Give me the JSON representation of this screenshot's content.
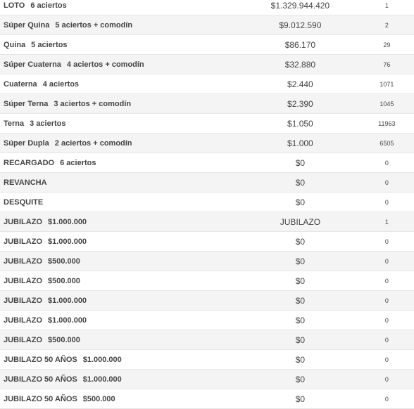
{
  "table": {
    "rows": [
      {
        "name": "LOTO",
        "detail": "6 aciertos",
        "prize": "$1.329.944.420",
        "winners": "1"
      },
      {
        "name": "Súper Quina",
        "detail": "5 aciertos + comodín",
        "prize": "$9.012.590",
        "winners": "2"
      },
      {
        "name": "Quina",
        "detail": "5 aciertos",
        "prize": "$86.170",
        "winners": "29"
      },
      {
        "name": "Súper Cuaterna",
        "detail": "4 aciertos + comodín",
        "prize": "$32.880",
        "winners": "76"
      },
      {
        "name": "Cuaterna",
        "detail": "4 aciertos",
        "prize": "$2.440",
        "winners": "1071"
      },
      {
        "name": "Súper Terna",
        "detail": "3 aciertos + comodín",
        "prize": "$2.390",
        "winners": "1045"
      },
      {
        "name": "Terna",
        "detail": "3 aciertos",
        "prize": "$1.050",
        "winners": "11963"
      },
      {
        "name": "Súper Dupla",
        "detail": "2 aciertos + comodín",
        "prize": "$1.000",
        "winners": "6505"
      },
      {
        "name": "RECARGADO",
        "detail": "6 aciertos",
        "prize": "$0",
        "winners": "0"
      },
      {
        "name": "REVANCHA",
        "detail": null,
        "prize": "$0",
        "winners": "0"
      },
      {
        "name": "DESQUITE",
        "detail": null,
        "prize": "$0",
        "winners": "0"
      },
      {
        "name": "JUBILAZO",
        "detail": "$1.000.000",
        "prize": "JUBILAZO",
        "winners": "1"
      },
      {
        "name": "JUBILAZO",
        "detail": "$1.000.000",
        "prize": "$0",
        "winners": "0"
      },
      {
        "name": "JUBILAZO",
        "detail": "$500.000",
        "prize": "$0",
        "winners": "0"
      },
      {
        "name": "JUBILAZO",
        "detail": "$500.000",
        "prize": "$0",
        "winners": "0"
      },
      {
        "name": "JUBILAZO",
        "detail": "$1.000.000",
        "prize": "$0",
        "winners": "0"
      },
      {
        "name": "JUBILAZO",
        "detail": "$1.000.000",
        "prize": "$0",
        "winners": "0"
      },
      {
        "name": "JUBILAZO",
        "detail": "$500.000",
        "prize": "$0",
        "winners": "0"
      },
      {
        "name": "JUBILAZO 50 AÑOS",
        "detail": "$1.000.000",
        "prize": "$0",
        "winners": "0"
      },
      {
        "name": "JUBILAZO 50 AÑOS",
        "detail": "$1.000.000",
        "prize": "$0",
        "winners": "0"
      },
      {
        "name": "JUBILAZO 50 AÑOS",
        "detail": "$500.000",
        "prize": "$0",
        "winners": "0"
      }
    ]
  }
}
